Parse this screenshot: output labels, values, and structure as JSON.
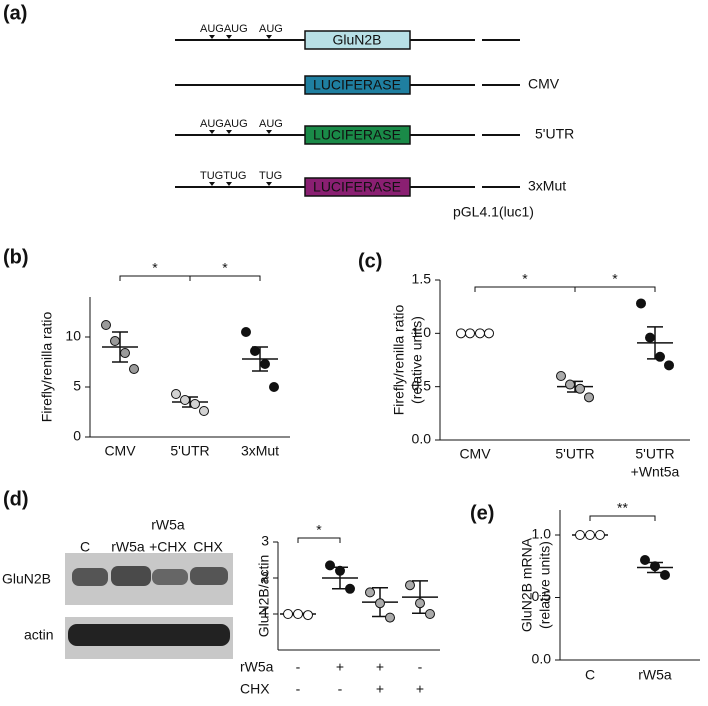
{
  "panel_labels": [
    "(a)",
    "(b)",
    "(c)",
    "(d)",
    "(e)"
  ],
  "constructs": {
    "rows": [
      {
        "codons": [
          "AUGAUG",
          "AUG"
        ],
        "box": "GluN2B",
        "color": "#b8e0e6",
        "text_color": "#111111"
      },
      {
        "box": "LUCIFERASE",
        "color": "#1f7fa0",
        "text_color": "#ffffff",
        "label": "CMV"
      },
      {
        "codons": [
          "AUGAUG",
          "AUG"
        ],
        "box": "LUCIFERASE",
        "color": "#1a8a48",
        "text_color": "#ffffff",
        "label": "5'UTR"
      },
      {
        "codons": [
          "TUGTUG",
          "TUG"
        ],
        "box": "LUCIFERASE",
        "color": "#8a1f72",
        "text_color": "#ffffff",
        "label": "3xMut"
      }
    ],
    "vector": "pGL4.1(luc1)"
  },
  "blot": {
    "lanes": [
      [
        "C"
      ],
      [
        "rW5a"
      ],
      [
        "rW5a",
        "+CHX"
      ],
      [
        "CHX"
      ]
    ],
    "bands": [
      "GluN2B",
      "actin"
    ]
  },
  "chart_data": [
    {
      "type": "dotplot",
      "ylabel": [
        "Firefly/renilla ratio"
      ],
      "categories": [
        [
          "CMV"
        ],
        [
          "5'UTR"
        ],
        [
          "3xMut"
        ]
      ],
      "colors": [
        "#9a9a9a",
        "#d2d2d2",
        "#111111"
      ],
      "values": [
        [
          11.2,
          9.6,
          8.4,
          6.8
        ],
        [
          4.3,
          3.7,
          3.3,
          2.6
        ],
        [
          10.5,
          8.6,
          7.3,
          5.0
        ]
      ],
      "means": [
        9.0,
        3.5,
        7.8
      ],
      "sem": [
        1.5,
        0.5,
        1.2
      ],
      "annotations": [
        "*",
        "*"
      ],
      "ylim": [
        0,
        14
      ],
      "yticks": [
        0,
        5,
        10
      ]
    },
    {
      "type": "dotplot",
      "ylabel": [
        "Firefly/renilla ratio",
        "(relative units)"
      ],
      "categories": [
        [
          "CMV"
        ],
        [
          "5'UTR"
        ],
        [
          "5'UTR",
          "+Wnt5a"
        ]
      ],
      "colors": [
        "#ffffff",
        "#aaaaaa",
        "#111111"
      ],
      "values": [
        [
          1.0,
          1.0,
          1.0,
          1.0
        ],
        [
          0.6,
          0.52,
          0.48,
          0.4
        ],
        [
          1.28,
          0.96,
          0.78,
          0.7
        ]
      ],
      "means": [
        1.0,
        0.5,
        0.91
      ],
      "sem": [
        0,
        0.05,
        0.15
      ],
      "annotations": [
        "*",
        "*"
      ],
      "ylim": [
        0,
        1.5
      ],
      "yticks": [
        {
          "value": 0,
          "label": "0.0"
        },
        0.5,
        {
          "value": 1,
          "label": "1.0"
        },
        1.5
      ]
    },
    {
      "type": "dotplot",
      "ylabel": [
        "GluN2B/actin"
      ],
      "treatments": [
        {
          "name": "rW5a",
          "values": [
            "-",
            "+",
            "+",
            "-"
          ]
        },
        {
          "name": "CHX",
          "values": [
            "-",
            "-",
            "+",
            "+"
          ]
        }
      ],
      "colors": [
        "#ffffff",
        "#111111",
        "#aaaaaa",
        "#aaaaaa"
      ],
      "values": [
        [
          1.0,
          1.0,
          0.97
        ],
        [
          2.35,
          2.2,
          1.7
        ],
        [
          1.6,
          1.3,
          0.9
        ],
        [
          1.8,
          1.3,
          1.0
        ]
      ],
      "means": [
        1.0,
        2.0,
        1.33,
        1.47
      ],
      "sem": [
        0.02,
        0.3,
        0.4,
        0.45
      ],
      "annotations": [
        "*"
      ],
      "ylim": [
        0,
        3
      ],
      "yticks": [
        1,
        2,
        3
      ]
    },
    {
      "type": "dotplot",
      "ylabel": [
        "GluN2B mRNA",
        "(relative units)"
      ],
      "categories": [
        [
          "C"
        ],
        [
          "rW5a"
        ]
      ],
      "colors": [
        "#ffffff",
        "#111111"
      ],
      "values": [
        [
          1.0,
          1.0,
          1.0
        ],
        [
          0.8,
          0.75,
          0.68
        ]
      ],
      "means": [
        1.0,
        0.74
      ],
      "sem": [
        0,
        0.04
      ],
      "annotations": [
        "**"
      ],
      "ylim": [
        0,
        1.2
      ],
      "yticks": [
        {
          "value": 0,
          "label": "0.0"
        },
        0.5,
        {
          "value": 1,
          "label": "1.0"
        }
      ]
    }
  ]
}
